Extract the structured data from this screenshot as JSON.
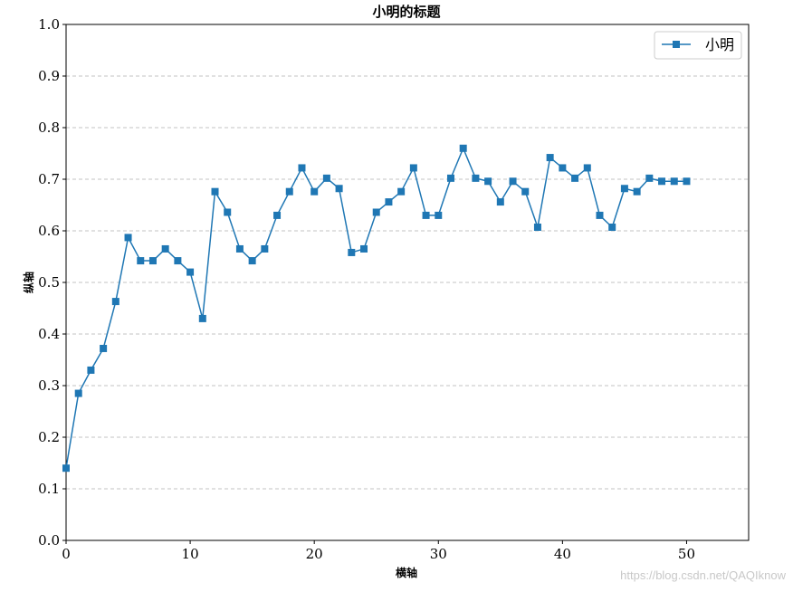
{
  "chart_data": {
    "type": "line",
    "title": "小明的标题",
    "xlabel": "横轴",
    "ylabel": "纵轴",
    "xlim": [
      0,
      55
    ],
    "ylim": [
      0,
      1.0
    ],
    "xticks": [
      "0",
      "10",
      "20",
      "30",
      "40",
      "50"
    ],
    "xtick_values": [
      0,
      10,
      20,
      30,
      40,
      50
    ],
    "yticks": [
      "0.0",
      "0.1",
      "0.2",
      "0.3",
      "0.4",
      "0.5",
      "0.6",
      "0.7",
      "0.8",
      "0.9",
      "1.0"
    ],
    "ytick_values": [
      0.0,
      0.1,
      0.2,
      0.3,
      0.4,
      0.5,
      0.6,
      0.7,
      0.8,
      0.9,
      1.0
    ],
    "grid": "y-dashed",
    "legend_position": "top-right",
    "series": [
      {
        "name": "小明",
        "color": "#1f77b4",
        "marker": "square",
        "x": [
          0,
          1,
          2,
          3,
          4,
          5,
          6,
          7,
          8,
          9,
          10,
          11,
          12,
          13,
          14,
          15,
          16,
          17,
          18,
          19,
          20,
          21,
          22,
          23,
          24,
          25,
          26,
          27,
          28,
          29,
          30,
          31,
          32,
          33,
          34,
          35,
          36,
          37,
          38,
          39,
          40,
          41,
          42,
          43,
          44,
          45,
          46,
          47,
          48,
          49,
          50
        ],
        "values": [
          0.14,
          0.285,
          0.33,
          0.372,
          0.463,
          0.587,
          0.542,
          0.542,
          0.565,
          0.542,
          0.52,
          0.43,
          0.676,
          0.636,
          0.565,
          0.542,
          0.565,
          0.63,
          0.676,
          0.722,
          0.676,
          0.702,
          0.682,
          0.558,
          0.565,
          0.636,
          0.656,
          0.676,
          0.722,
          0.63,
          0.63,
          0.702,
          0.76,
          0.702,
          0.696,
          0.656,
          0.696,
          0.676,
          0.607,
          0.742,
          0.722,
          0.702,
          0.722,
          0.63,
          0.607,
          0.682,
          0.676,
          0.702,
          0.696,
          0.696,
          0.696
        ]
      }
    ]
  },
  "watermark": "https://blog.csdn.net/QAQIknow"
}
